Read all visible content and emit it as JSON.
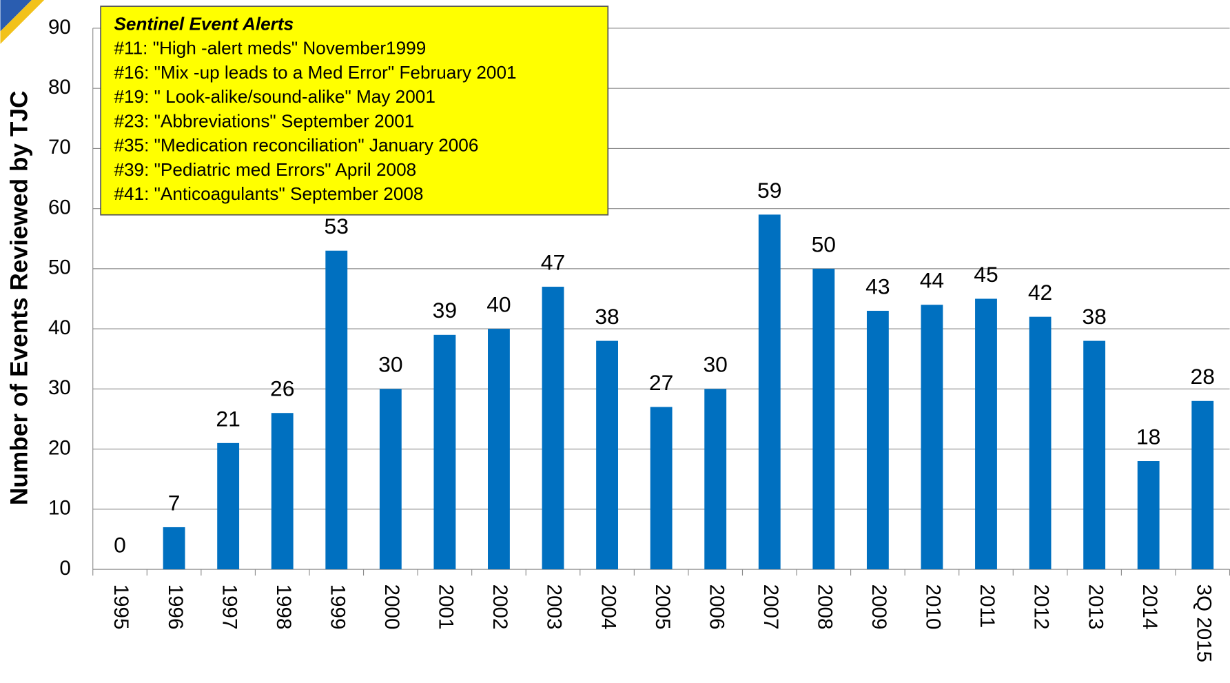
{
  "chart_data": {
    "type": "bar",
    "ylabel": "Number of Events Reviewed by TJC",
    "categories": [
      "1995",
      "1996",
      "1997",
      "1998",
      "1999",
      "2000",
      "2001",
      "2002",
      "2003",
      "2004",
      "2005",
      "2006",
      "2007",
      "2008",
      "2009",
      "2010",
      "2011",
      "2012",
      "2013",
      "2014",
      "3Q 2015"
    ],
    "values": [
      0,
      7,
      21,
      26,
      53,
      30,
      39,
      40,
      47,
      38,
      27,
      30,
      59,
      50,
      43,
      44,
      45,
      42,
      38,
      18,
      28
    ],
    "color": "#0070c0",
    "ylim": [
      0,
      90
    ],
    "yticks": [
      0,
      10,
      20,
      30,
      40,
      50,
      60,
      70,
      80,
      90
    ],
    "grid": true,
    "annotation": {
      "title": "Sentinel Event Alerts",
      "lines": [
        "#11: \"High -alert meds\" November1999",
        "#16: \"Mix -up leads to a Med Error\" February 2001",
        "#19: \" Look-alike/sound-alike\" May 2001",
        "#23: \"Abbreviations\" September 2001",
        "#35: \"Medication reconciliation\" January 2006",
        "#39: \"Pediatric med Errors\" April 2008",
        "#41: \"Anticoagulants\" September 2008"
      ]
    }
  }
}
